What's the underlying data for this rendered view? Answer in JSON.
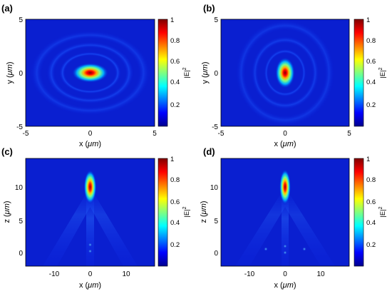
{
  "figure": {
    "colorbar": {
      "label": "|E|",
      "label_exponent": "2",
      "ticks": [
        "1",
        "0.8",
        "0.6",
        "0.4",
        "0.2"
      ],
      "colormap": "jet",
      "range": [
        0,
        1
      ]
    },
    "panels": [
      {
        "label": "(a)",
        "xlabel_prefix": "x (",
        "xlabel_unit": "μm",
        "xlabel_suffix": ")",
        "ylabel_prefix": "y (",
        "ylabel_unit": "μm",
        "ylabel_suffix": ")",
        "xticks": [
          "-5",
          "0",
          "5"
        ],
        "yticks": [
          "5",
          "0",
          "-5"
        ]
      },
      {
        "label": "(b)",
        "xlabel_prefix": "x (",
        "xlabel_unit": "μm",
        "xlabel_suffix": ")",
        "ylabel_prefix": "y (",
        "ylabel_unit": "μm",
        "ylabel_suffix": ")",
        "xticks": [
          "-5",
          "0",
          "5"
        ],
        "yticks": [
          "5",
          "0",
          "-5"
        ]
      },
      {
        "label": "(c)",
        "xlabel_prefix": "x (",
        "xlabel_unit": "μm",
        "xlabel_suffix": ")",
        "ylabel_prefix": "z (",
        "ylabel_unit": "μm",
        "ylabel_suffix": ")",
        "xticks": [
          "-10",
          "0",
          "10"
        ],
        "yticks": [
          "10",
          "5",
          "0"
        ]
      },
      {
        "label": "(d)",
        "xlabel_prefix": "x (",
        "xlabel_unit": "μm",
        "xlabel_suffix": ")",
        "ylabel_prefix": "z (",
        "ylabel_unit": "μm",
        "ylabel_suffix": ")",
        "xticks": [
          "-10",
          "0",
          "10"
        ],
        "yticks": [
          "10",
          "5",
          "0"
        ]
      }
    ]
  },
  "chart_data": [
    {
      "type": "heatmap",
      "panel": "(a)",
      "xlabel": "x (μm)",
      "ylabel": "y (μm)",
      "xlim": [
        -5,
        5
      ],
      "ylim": [
        -5,
        5
      ],
      "zlabel": "|E|^2",
      "zlim": [
        0,
        1
      ],
      "features": [
        {
          "kind": "elliptical-spot",
          "center": [
            0,
            0
          ],
          "peak": 1.0,
          "width_x": 1.6,
          "width_y": 0.9
        }
      ]
    },
    {
      "type": "heatmap",
      "panel": "(b)",
      "xlabel": "x (μm)",
      "ylabel": "y (μm)",
      "xlim": [
        -5,
        5
      ],
      "ylim": [
        -5,
        5
      ],
      "zlabel": "|E|^2",
      "zlim": [
        0,
        1
      ],
      "features": [
        {
          "kind": "elliptical-spot",
          "center": [
            0,
            0
          ],
          "peak": 1.0,
          "width_x": 0.9,
          "width_y": 1.4
        }
      ]
    },
    {
      "type": "heatmap",
      "panel": "(c)",
      "xlabel": "x (μm)",
      "ylabel": "z (μm)",
      "xlim": [
        -18,
        18
      ],
      "ylim": [
        -2,
        13
      ],
      "zlabel": "|E|^2",
      "zlim": [
        0,
        1
      ],
      "features": [
        {
          "kind": "focal-spot",
          "center": [
            0,
            10.2
          ],
          "peak": 1.0,
          "width_x": 1.0,
          "width_z": 2.2
        }
      ]
    },
    {
      "type": "heatmap",
      "panel": "(d)",
      "xlabel": "x (μm)",
      "ylabel": "z (μm)",
      "xlim": [
        -18,
        18
      ],
      "ylim": [
        -2,
        13
      ],
      "zlabel": "|E|^2",
      "zlim": [
        0,
        1
      ],
      "features": [
        {
          "kind": "focal-spot",
          "center": [
            0,
            10.2
          ],
          "peak": 1.0,
          "width_x": 0.9,
          "width_z": 2.4
        }
      ]
    }
  ]
}
